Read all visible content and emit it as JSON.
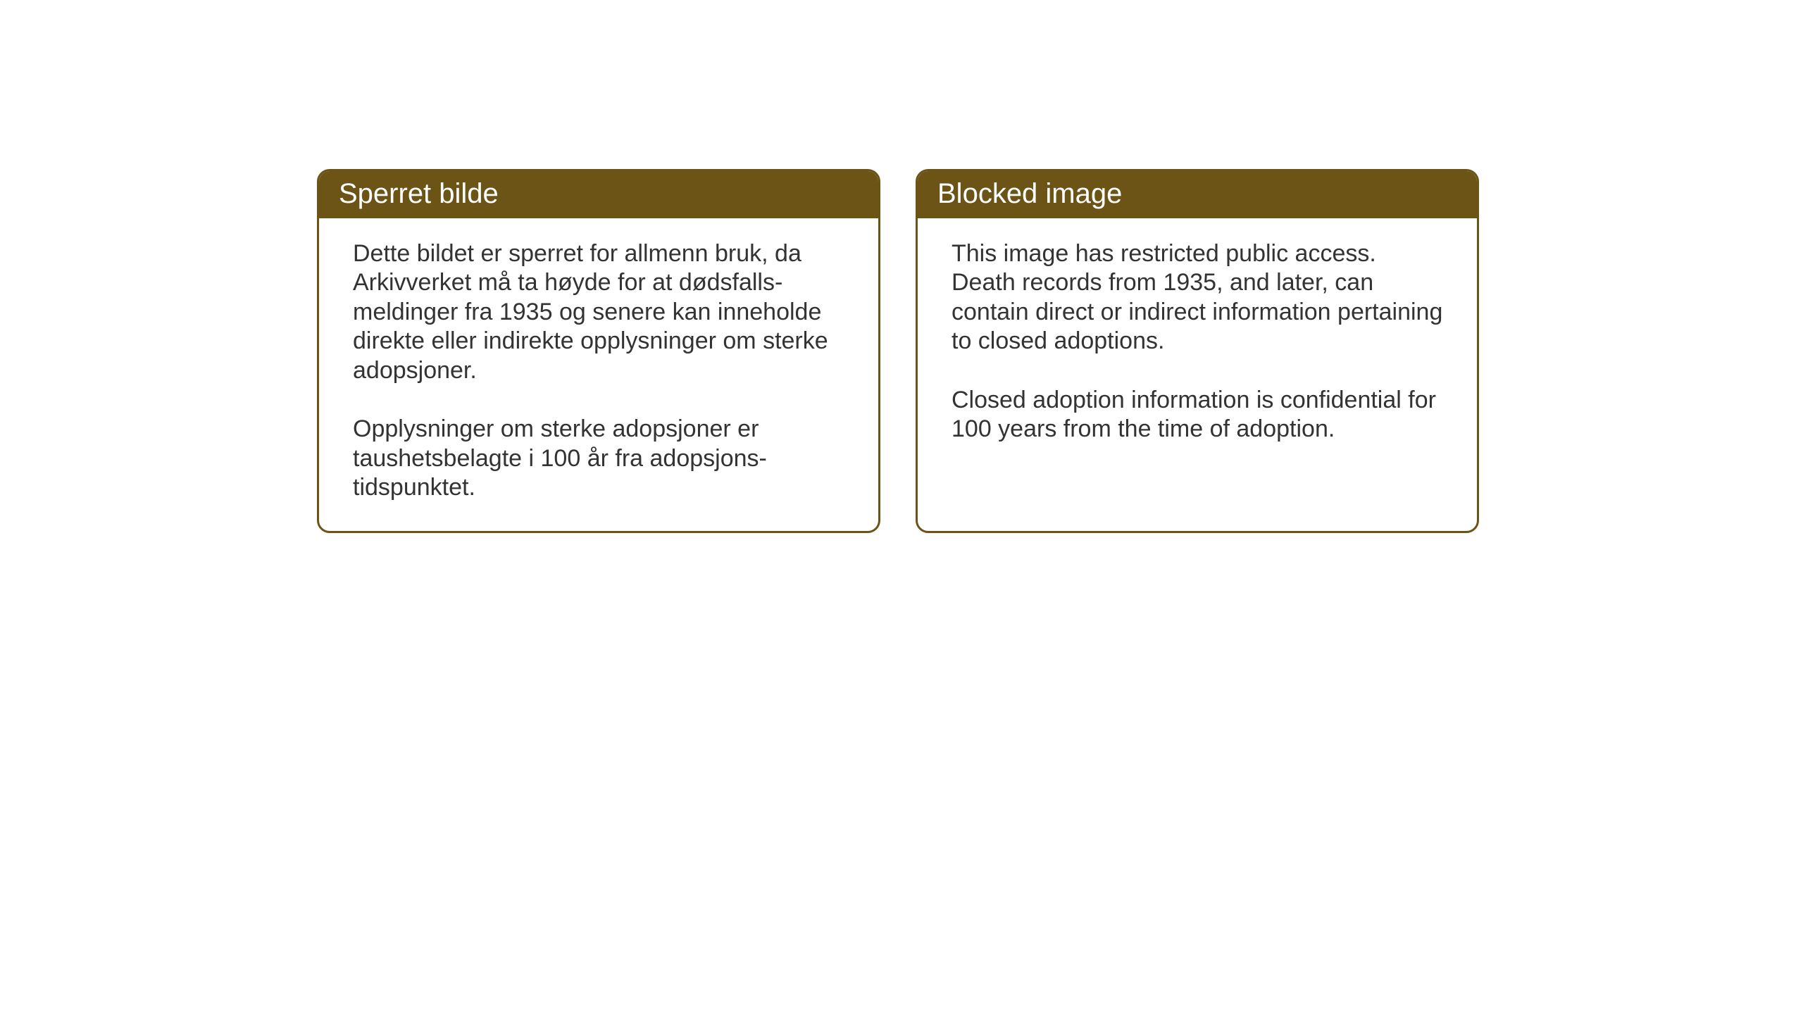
{
  "layout": {
    "background_color": "#ffffff",
    "card_border_color": "#6b5416",
    "card_border_width": 3,
    "card_border_radius": 18,
    "header_background_color": "#6b5416",
    "header_text_color": "#ffffff",
    "body_text_color": "#333333",
    "header_fontsize": 40,
    "body_fontsize": 34
  },
  "cards": {
    "norwegian": {
      "title": "Sperret bilde",
      "paragraph1": "Dette bildet er sperret for allmenn bruk, da Arkivverket må ta høyde for at dødsfalls-meldinger fra 1935 og senere kan inneholde direkte eller indirekte opplysninger om sterke adopsjoner.",
      "paragraph2": "Opplysninger om sterke adopsjoner er taushetsbelagte i 100 år fra adopsjons-tidspunktet."
    },
    "english": {
      "title": "Blocked image",
      "paragraph1": "This image has restricted public access. Death records from 1935, and later, can contain direct or indirect information pertaining to closed adoptions.",
      "paragraph2": "Closed adoption information is confidential for 100 years from the time of adoption."
    }
  }
}
